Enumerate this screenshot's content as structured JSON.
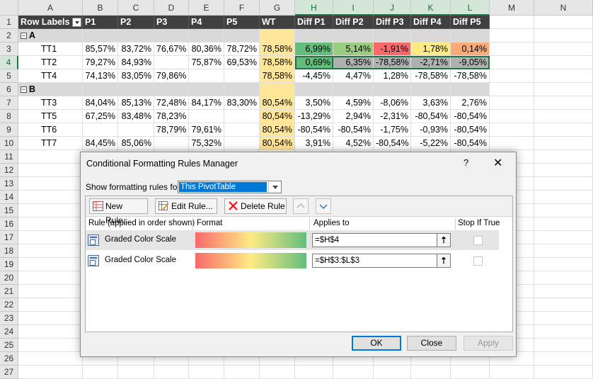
{
  "sheet": {
    "columns": [
      "A",
      "B",
      "C",
      "D",
      "E",
      "F",
      "G",
      "H",
      "I",
      "J",
      "K",
      "L",
      "M",
      "N"
    ],
    "rows": [
      "1",
      "2",
      "3",
      "4",
      "5",
      "6",
      "7",
      "8",
      "9",
      "10",
      "11",
      "12",
      "13",
      "14",
      "15",
      "16",
      "17",
      "18",
      "19",
      "20",
      "21",
      "22",
      "23",
      "24",
      "25",
      "26",
      "27"
    ],
    "header": [
      "Row Labels",
      "P1",
      "P2",
      "P3",
      "P4",
      "P5",
      "WT",
      "Diff P1",
      "Diff P2",
      "Diff P3",
      "Diff P4",
      "Diff P5"
    ],
    "data": [
      {
        "type": "group",
        "label": "A"
      },
      {
        "type": "row",
        "cells": [
          "TT1",
          "85,57%",
          "83,72%",
          "76,67%",
          "80,36%",
          "78,72%",
          "78,58%",
          "6,99%",
          "5,14%",
          "-1,91%",
          "1,78%",
          "0,14%"
        ],
        "colors": [
          "#63be7b",
          "#9acd80",
          "#f8696b",
          "#ffeb84",
          "#fbaa77"
        ]
      },
      {
        "type": "row",
        "cells": [
          "TT2",
          "79,27%",
          "84,93%",
          "",
          "75,87%",
          "69,53%",
          "78,58%",
          "0,69%",
          "6,35%",
          "-78,58%",
          "-2,71%",
          "-9,05%"
        ],
        "colors": [
          "#63be7b",
          "#b0b0b0",
          "#b0b0b0",
          "#b0b0b0",
          "#b0b0b0"
        ]
      },
      {
        "type": "row",
        "cells": [
          "TT4",
          "74,13%",
          "83,05%",
          "79,86%",
          "",
          "",
          "78,58%",
          "-4,45%",
          "4,47%",
          "1,28%",
          "-78,58%",
          "-78,58%"
        ]
      },
      {
        "type": "group",
        "label": "B"
      },
      {
        "type": "row",
        "cells": [
          "TT3",
          "84,04%",
          "85,13%",
          "72,48%",
          "84,17%",
          "83,30%",
          "80,54%",
          "3,50%",
          "4,59%",
          "-8,06%",
          "3,63%",
          "2,76%"
        ]
      },
      {
        "type": "row",
        "cells": [
          "TT5",
          "67,25%",
          "83,48%",
          "78,23%",
          "",
          "",
          "80,54%",
          "-13,29%",
          "2,94%",
          "-2,31%",
          "-80,54%",
          "-80,54%"
        ]
      },
      {
        "type": "row",
        "cells": [
          "TT6",
          "",
          "",
          "78,79%",
          "79,61%",
          "",
          "80,54%",
          "-80,54%",
          "-80,54%",
          "-1,75%",
          "-0,93%",
          "-80,54%"
        ]
      },
      {
        "type": "row",
        "cells": [
          "TT7",
          "84,45%",
          "85,06%",
          "",
          "75,32%",
          "",
          "80,54%",
          "3,91%",
          "4,52%",
          "-80,54%",
          "-5,22%",
          "-80,54%"
        ]
      }
    ]
  },
  "dialog": {
    "title": "Conditional Formatting Rules Manager",
    "help": "?",
    "close": "✕",
    "show_label": "Show formatting rules for:",
    "show_value": "This PivotTable",
    "toolbar": {
      "new_rule": "New Rule...",
      "edit_rule": "Edit Rule...",
      "delete_rule": "Delete Rule"
    },
    "columns": {
      "rule": "Rule (applied in order shown)",
      "format": "Format",
      "applies": "Applies to",
      "stop": "Stop If True"
    },
    "rules": [
      {
        "name": "Graded Color Scale",
        "applies_to": "=$H$4",
        "selected": true
      },
      {
        "name": "Graded Color Scale",
        "applies_to": "=$H$3:$L$3",
        "selected": false
      }
    ],
    "buttons": {
      "ok": "OK",
      "close": "Close",
      "apply": "Apply"
    }
  }
}
